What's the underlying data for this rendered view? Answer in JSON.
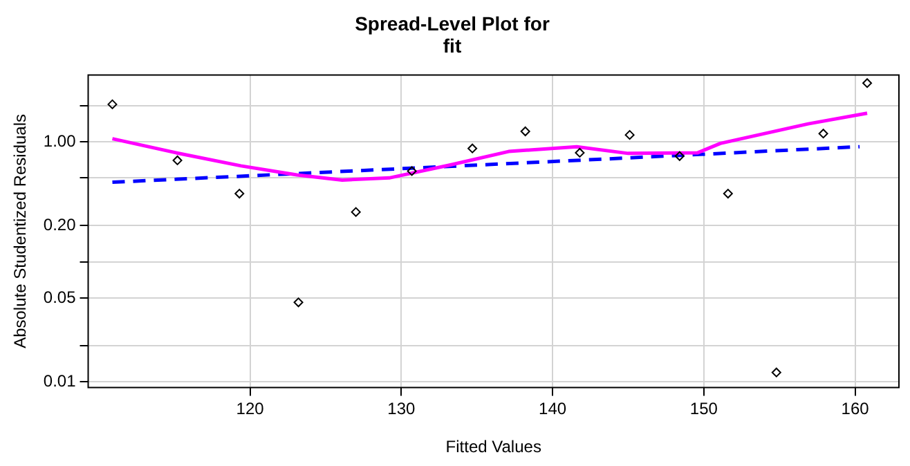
{
  "chart_data": {
    "type": "scatter",
    "title": "Spread-Level Plot for\nfit",
    "xlabel": "Fitted Values",
    "ylabel": "Absolute Studentized Residuals",
    "log": "y",
    "grid": true,
    "legend": false,
    "marker": "diamond",
    "xlim": [
      109.3,
      162.9
    ],
    "xticks": [
      120,
      130,
      140,
      150,
      160
    ],
    "ylim": [
      0.009,
      3.6
    ],
    "yticks": [
      {
        "value": 0.01,
        "label": "0.01"
      },
      {
        "value": 0.02,
        "label": null
      },
      {
        "value": 0.05,
        "label": "0.05"
      },
      {
        "value": 0.1,
        "label": null
      },
      {
        "value": 0.2,
        "label": "0.20"
      },
      {
        "value": 0.5,
        "label": null
      },
      {
        "value": 1,
        "label": "1.00"
      },
      {
        "value": 2,
        "label": null
      }
    ],
    "series": [
      {
        "color": "#000000",
        "x": [
          110.9,
          115.2,
          119.3,
          123.2,
          127.0,
          130.7,
          134.7,
          138.2,
          141.8,
          145.1,
          148.4,
          151.6,
          154.8,
          157.9,
          160.8
        ],
        "values": [
          2.05,
          0.7,
          0.37,
          0.046,
          0.26,
          0.57,
          0.88,
          1.22,
          0.81,
          1.14,
          0.76,
          0.37,
          0.012,
          1.17,
          3.08
        ]
      },
      {
        "type": "line",
        "color": "#ff00ff",
        "marker": "none",
        "line_style": "solid",
        "x": [
          110.9,
          115.1,
          119.4,
          123.1,
          126.1,
          129.2,
          133.2,
          137.1,
          141.6,
          145.0,
          149.6,
          151.1,
          156.9,
          160.8
        ],
        "values": [
          1.06,
          0.81,
          0.63,
          0.53,
          0.48,
          0.5,
          0.64,
          0.83,
          0.91,
          0.8,
          0.81,
          0.97,
          1.41,
          1.73
        ]
      },
      {
        "type": "line",
        "color": "#0000ff",
        "marker": "none",
        "line_style": "dashed",
        "x": [
          110.9,
          141.6,
          160.3
        ],
        "values": [
          0.46,
          0.7,
          0.91
        ]
      }
    ]
  }
}
